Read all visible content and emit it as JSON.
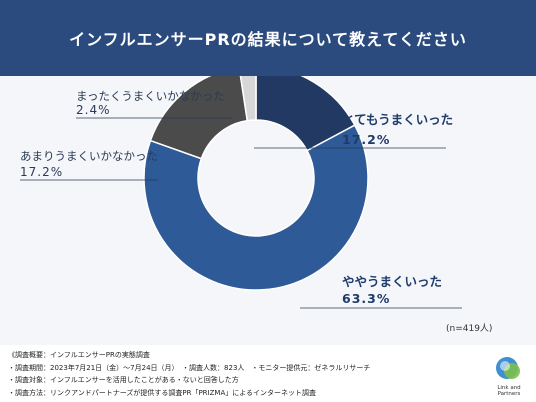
{
  "title": "インフルエンサーPRの結果について教えてください",
  "chart_data": {
    "type": "pie",
    "donut": true,
    "categories": [
      "とてもうまくいった",
      "ややうまくいった",
      "あまりうまくいかなかった",
      "まったくうまくいかなかった"
    ],
    "values": [
      17.2,
      63.3,
      17.2,
      2.4
    ],
    "value_labels": [
      "17.2%",
      "63.3%",
      "17.2%",
      "2.4%"
    ],
    "colors": [
      "#223a63",
      "#2e5b98",
      "#4b4b4b",
      "#d7d7d7"
    ],
    "sample": "(n=419人)"
  },
  "footer": {
    "lines": [
      "《調査概要：インフルエンサーPRの実態調査",
      "・調査期間：2023年7月21日（金）〜7月24日（月）　・調査人数：823人　・モニター提供元：ゼネラルリサーチ",
      "・調査対象：インフルエンサーを活用したことがある・ないと回答した方",
      "・調査方法：リンクアンドパートナーズが提供する調査PR「PRIZMA」によるインターネット調査"
    ],
    "logo_text": "Link and Partners"
  }
}
